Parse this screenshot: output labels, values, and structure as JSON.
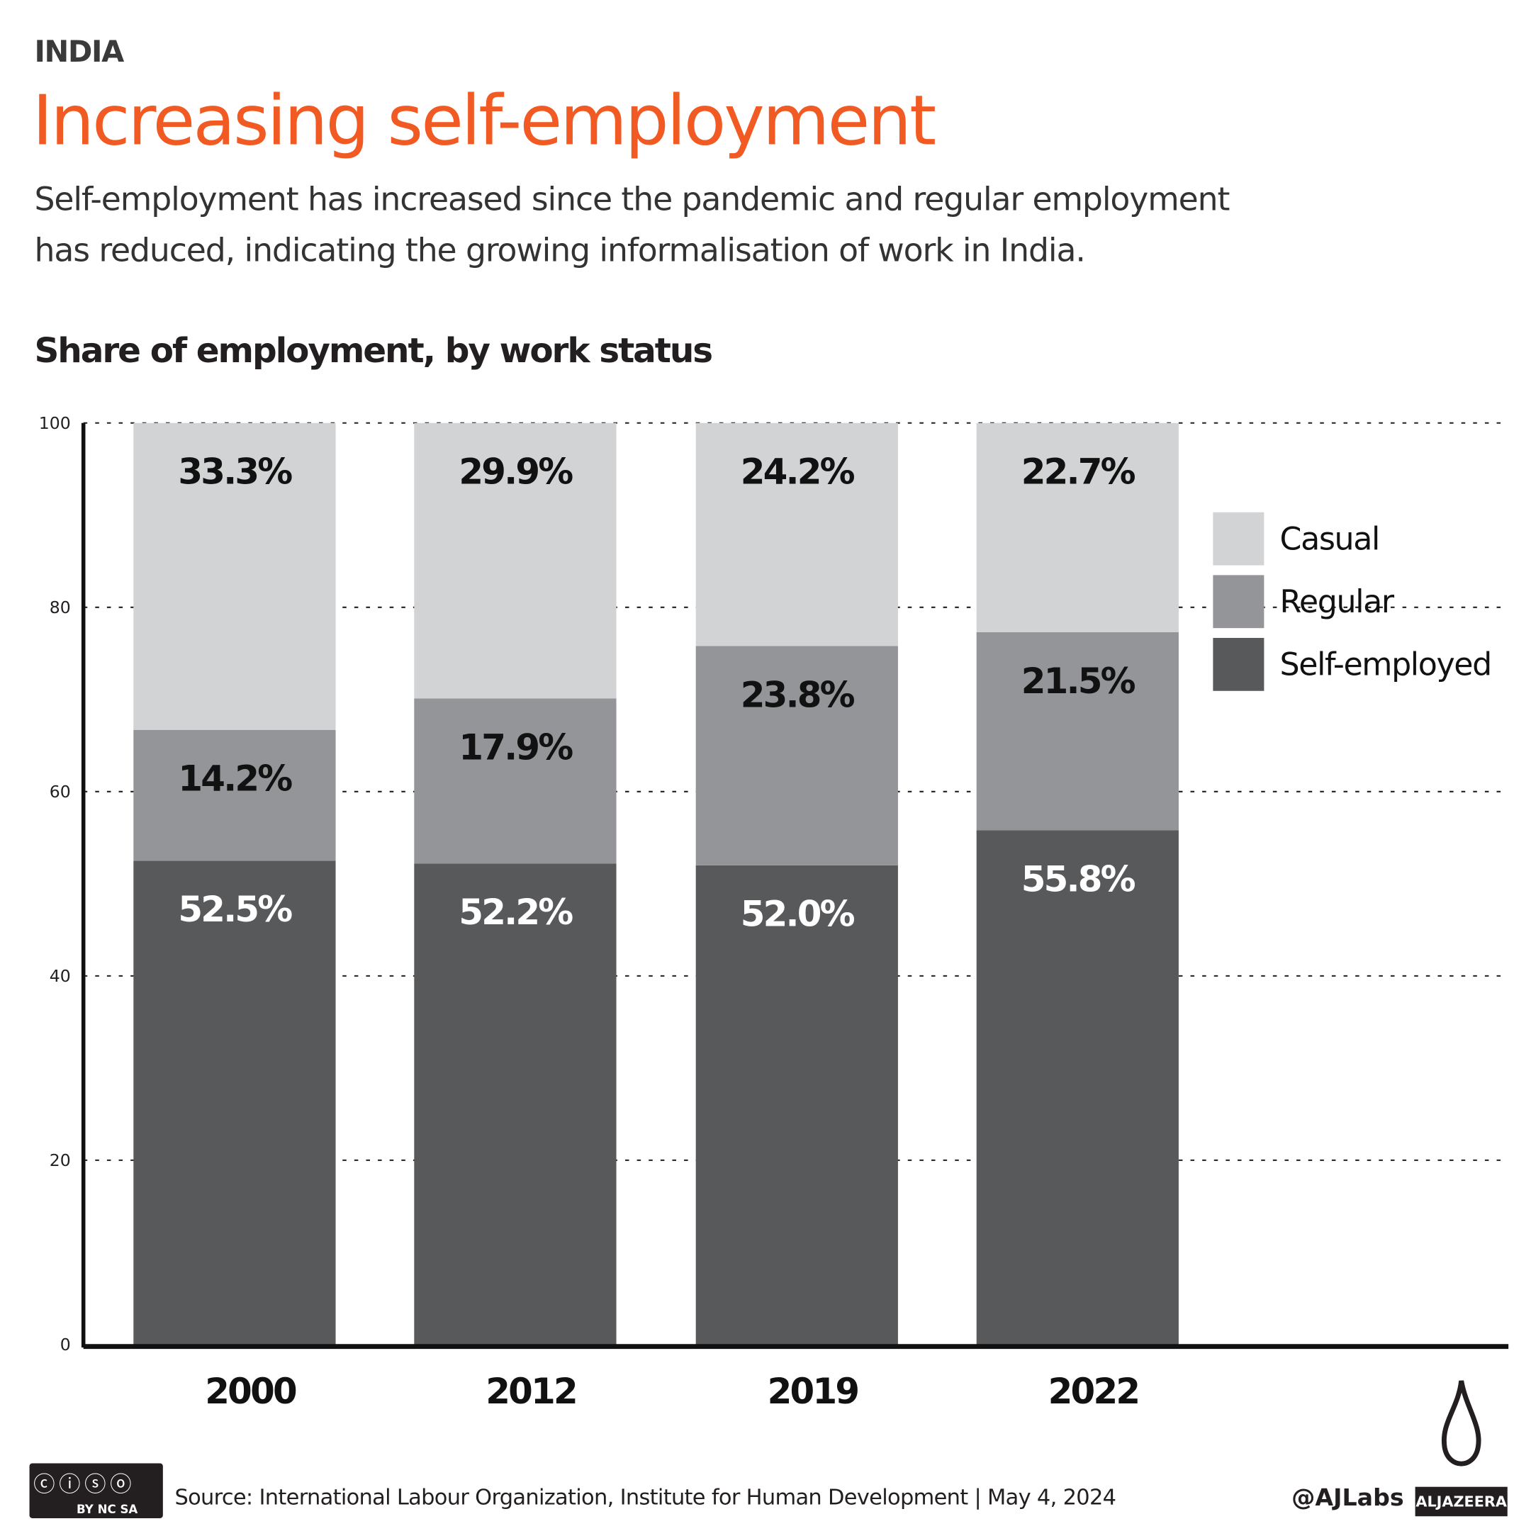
{
  "header": {
    "kicker": "INDIA",
    "title": "Increasing self-employment",
    "subtitle_lines": [
      "Self-employment has increased since the pandemic and regular employment",
      "has reduced, indicating the growing informalisation of work in India."
    ]
  },
  "chart_data": {
    "type": "bar",
    "stacked": true,
    "title": "Share of employment, by work status",
    "categories": [
      "2000",
      "2012",
      "2019",
      "2022"
    ],
    "series": [
      {
        "name": "Self-employed",
        "color": "#58595b",
        "values": [
          52.5,
          52.2,
          52.0,
          55.8
        ],
        "labels": [
          "52.5%",
          "52.2%",
          "52.0%",
          "55.8%"
        ],
        "label_color": "#ffffff"
      },
      {
        "name": "Regular",
        "color": "#939598",
        "values": [
          14.2,
          17.9,
          23.8,
          21.5
        ],
        "labels": [
          "14.2%",
          "17.9%",
          "23.8%",
          "21.5%"
        ],
        "label_color": "#111111"
      },
      {
        "name": "Casual",
        "color": "#d1d3d4",
        "values": [
          33.3,
          29.9,
          24.2,
          22.7
        ],
        "labels": [
          "33.3%",
          "29.9%",
          "24.2%",
          "22.7%"
        ],
        "label_color": "#111111"
      }
    ],
    "ylim": [
      0,
      100
    ],
    "yticks": [
      "0",
      "20",
      "40",
      "60",
      "80",
      "100"
    ],
    "grid": true,
    "legend": "right"
  },
  "footer": {
    "source": "Source: International Labour Organization, Institute for Human Development | May 4, 2024",
    "handle": "@AJLabs",
    "brand": "ALJAZEERA",
    "license": "BY NC SA"
  }
}
